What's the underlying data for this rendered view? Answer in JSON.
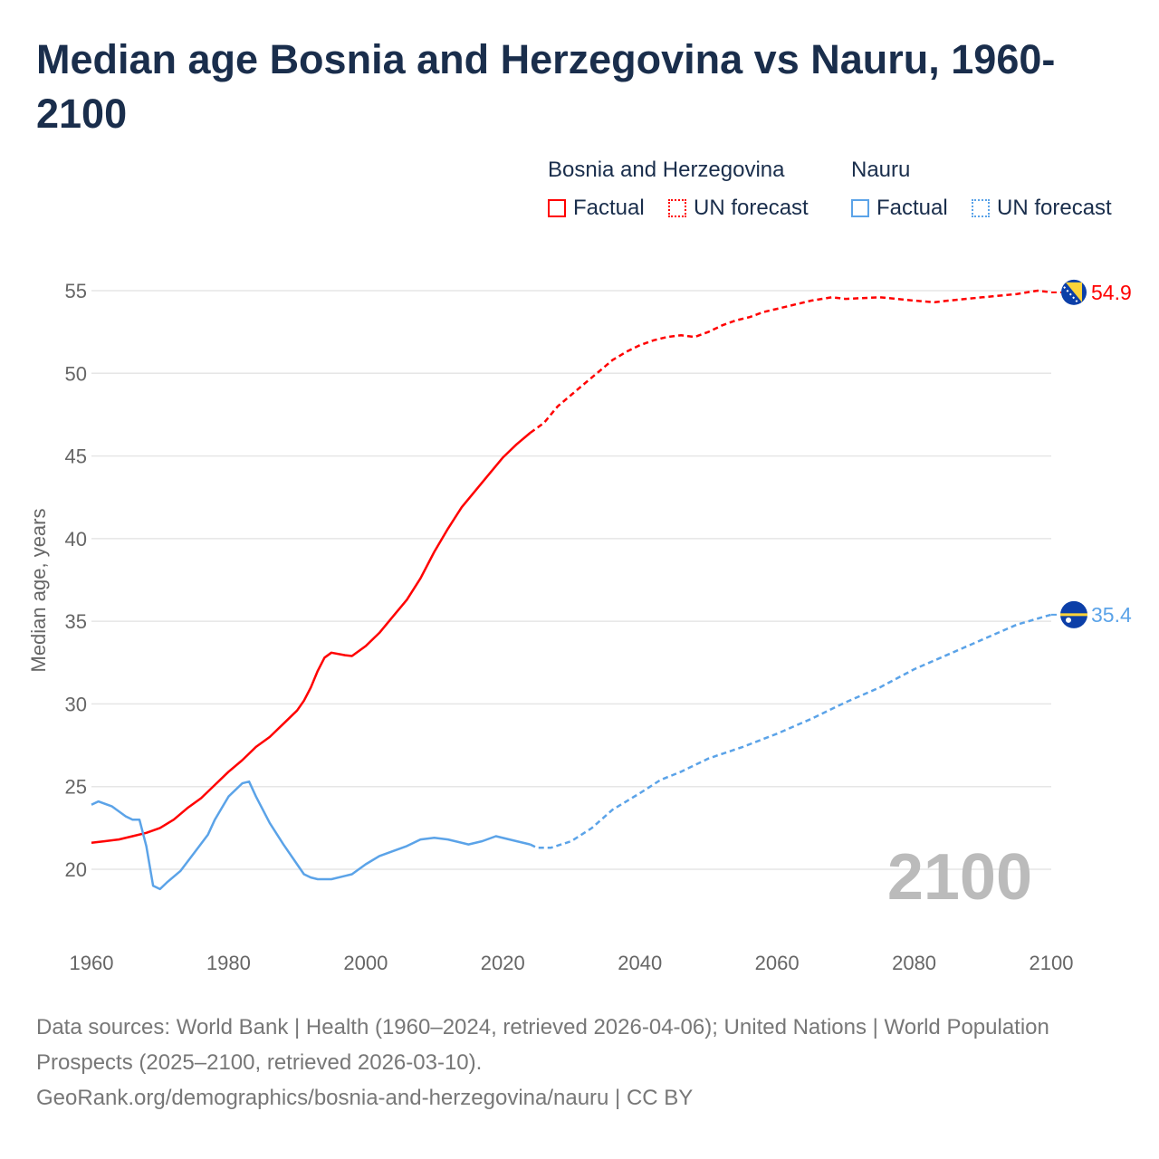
{
  "chart_data": {
    "type": "line",
    "title": "Median age Bosnia and Herzegovina vs Nauru, 1960-2100",
    "ylabel": "Median age, years",
    "xlabel": "",
    "xlim": [
      1960,
      2100
    ],
    "ylim": [
      16.5,
      56
    ],
    "xticks": [
      1960,
      1980,
      2000,
      2020,
      2040,
      2060,
      2080,
      2100
    ],
    "yticks": [
      20,
      25,
      30,
      35,
      40,
      45,
      50,
      55
    ],
    "grid": true,
    "watermark_year": "2100",
    "legend": {
      "placement": "top-right",
      "groups": [
        {
          "name": "Bosnia and Herzegovina",
          "items": [
            "Factual",
            "UN forecast"
          ],
          "color": "#ff0000"
        },
        {
          "name": "Nauru",
          "items": [
            "Factual",
            "UN forecast"
          ],
          "color": "#5ba3e8"
        }
      ]
    },
    "series": [
      {
        "name": "Bosnia and Herzegovina",
        "color": "#ff0000",
        "end_label": "54.9",
        "factual": [
          [
            1960,
            21.6
          ],
          [
            1962,
            21.7
          ],
          [
            1964,
            21.8
          ],
          [
            1966,
            22.0
          ],
          [
            1968,
            22.2
          ],
          [
            1970,
            22.5
          ],
          [
            1972,
            23.0
          ],
          [
            1974,
            23.7
          ],
          [
            1976,
            24.3
          ],
          [
            1978,
            25.1
          ],
          [
            1980,
            25.9
          ],
          [
            1982,
            26.6
          ],
          [
            1984,
            27.4
          ],
          [
            1986,
            28.0
          ],
          [
            1988,
            28.8
          ],
          [
            1990,
            29.6
          ],
          [
            1991,
            30.2
          ],
          [
            1992,
            31.0
          ],
          [
            1993,
            32.0
          ],
          [
            1994,
            32.8
          ],
          [
            1995,
            33.1
          ],
          [
            1997,
            32.95
          ],
          [
            1998,
            32.9
          ],
          [
            2000,
            33.5
          ],
          [
            2002,
            34.3
          ],
          [
            2004,
            35.3
          ],
          [
            2006,
            36.3
          ],
          [
            2008,
            37.6
          ],
          [
            2010,
            39.2
          ],
          [
            2012,
            40.6
          ],
          [
            2014,
            41.9
          ],
          [
            2016,
            42.9
          ],
          [
            2018,
            43.9
          ],
          [
            2020,
            44.9
          ],
          [
            2022,
            45.7
          ],
          [
            2024,
            46.4
          ]
        ],
        "forecast": [
          [
            2024,
            46.4
          ],
          [
            2026,
            47.0
          ],
          [
            2028,
            48.0
          ],
          [
            2030,
            48.7
          ],
          [
            2032,
            49.4
          ],
          [
            2034,
            50.1
          ],
          [
            2036,
            50.8
          ],
          [
            2038,
            51.3
          ],
          [
            2040,
            51.7
          ],
          [
            2042,
            52.0
          ],
          [
            2044,
            52.2
          ],
          [
            2046,
            52.3
          ],
          [
            2048,
            52.2
          ],
          [
            2050,
            52.5
          ],
          [
            2052,
            52.9
          ],
          [
            2054,
            53.2
          ],
          [
            2056,
            53.4
          ],
          [
            2058,
            53.7
          ],
          [
            2060,
            53.9
          ],
          [
            2065,
            54.4
          ],
          [
            2068,
            54.6
          ],
          [
            2070,
            54.5
          ],
          [
            2075,
            54.6
          ],
          [
            2080,
            54.4
          ],
          [
            2083,
            54.3
          ],
          [
            2085,
            54.4
          ],
          [
            2090,
            54.6
          ],
          [
            2095,
            54.8
          ],
          [
            2098,
            55.0
          ],
          [
            2100,
            54.9
          ]
        ]
      },
      {
        "name": "Nauru",
        "color": "#5ba3e8",
        "end_label": "35.4",
        "factual": [
          [
            1960,
            23.9
          ],
          [
            1961,
            24.1
          ],
          [
            1963,
            23.8
          ],
          [
            1965,
            23.2
          ],
          [
            1966,
            23.0
          ],
          [
            1967,
            23.0
          ],
          [
            1968,
            21.4
          ],
          [
            1969,
            19.0
          ],
          [
            1970,
            18.8
          ],
          [
            1971,
            19.2
          ],
          [
            1973,
            19.9
          ],
          [
            1975,
            21.0
          ],
          [
            1977,
            22.1
          ],
          [
            1978,
            23.0
          ],
          [
            1980,
            24.4
          ],
          [
            1982,
            25.2
          ],
          [
            1983,
            25.3
          ],
          [
            1984,
            24.4
          ],
          [
            1986,
            22.8
          ],
          [
            1988,
            21.5
          ],
          [
            1990,
            20.3
          ],
          [
            1991,
            19.7
          ],
          [
            1992,
            19.5
          ],
          [
            1993,
            19.4
          ],
          [
            1995,
            19.4
          ],
          [
            1998,
            19.7
          ],
          [
            2000,
            20.3
          ],
          [
            2002,
            20.8
          ],
          [
            2004,
            21.1
          ],
          [
            2006,
            21.4
          ],
          [
            2008,
            21.8
          ],
          [
            2010,
            21.9
          ],
          [
            2012,
            21.8
          ],
          [
            2015,
            21.5
          ],
          [
            2017,
            21.7
          ],
          [
            2019,
            22.0
          ],
          [
            2022,
            21.7
          ],
          [
            2024,
            21.5
          ]
        ],
        "forecast": [
          [
            2024,
            21.5
          ],
          [
            2025,
            21.3
          ],
          [
            2027,
            21.3
          ],
          [
            2030,
            21.7
          ],
          [
            2033,
            22.5
          ],
          [
            2036,
            23.6
          ],
          [
            2040,
            24.6
          ],
          [
            2043,
            25.4
          ],
          [
            2046,
            25.9
          ],
          [
            2050,
            26.7
          ],
          [
            2055,
            27.4
          ],
          [
            2060,
            28.2
          ],
          [
            2065,
            29.1
          ],
          [
            2070,
            30.1
          ],
          [
            2075,
            31.0
          ],
          [
            2080,
            32.1
          ],
          [
            2085,
            33.0
          ],
          [
            2090,
            33.9
          ],
          [
            2095,
            34.8
          ],
          [
            2100,
            35.4
          ]
        ]
      }
    ]
  },
  "legend_labels": {
    "bih": "Bosnia and Herzegovina",
    "nauru": "Nauru",
    "factual": "Factual",
    "forecast": "UN forecast"
  },
  "footer": {
    "line1": "Data sources: World Bank | Health (1960–2024, retrieved 2026-04-06); United Nations | World Population Prospects (2025–2100, retrieved 2026-03-10).",
    "line2": "GeoRank.org/demographics/bosnia-and-herzegovina/nauru | CC BY"
  }
}
